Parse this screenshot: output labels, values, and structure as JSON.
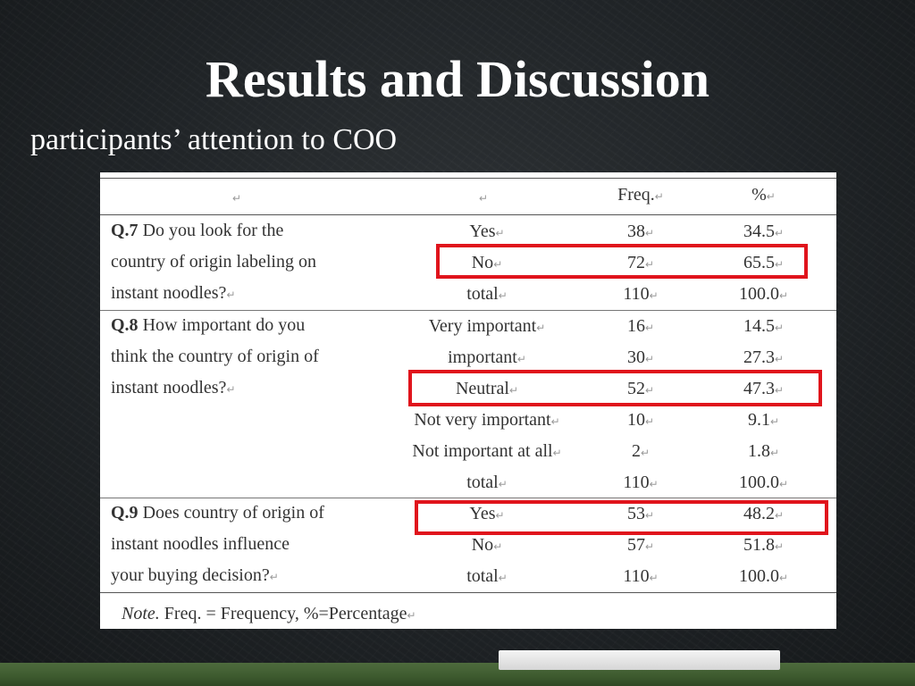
{
  "title": "Results and Discussion",
  "subtitle": "participants’ attention to COO",
  "table": {
    "mark": "↵",
    "headers": {
      "col1": "",
      "col2": "",
      "freq": "Freq.",
      "pct": "%"
    },
    "q7": {
      "num": "Q.7",
      "lines": [
        "Do you look for the",
        "country of origin labeling on",
        "instant noodles?"
      ],
      "rows": [
        {
          "answer": "Yes",
          "freq": "38",
          "pct": "34.5"
        },
        {
          "answer": "No",
          "freq": "72",
          "pct": "65.5"
        },
        {
          "answer": "total",
          "freq": "110",
          "pct": "100.0"
        }
      ]
    },
    "q8": {
      "num": "Q.8",
      "lines": [
        "How important do you",
        "think the country of origin of",
        "instant noodles?"
      ],
      "rows": [
        {
          "answer": "Very important",
          "freq": "16",
          "pct": "14.5"
        },
        {
          "answer": "important",
          "freq": "30",
          "pct": "27.3"
        },
        {
          "answer": "Neutral",
          "freq": "52",
          "pct": "47.3"
        },
        {
          "answer": "Not very important",
          "freq": "10",
          "pct": "9.1"
        },
        {
          "answer": "Not important at all",
          "freq": "2",
          "pct": "1.8"
        },
        {
          "answer": "total",
          "freq": "110",
          "pct": "100.0"
        }
      ]
    },
    "q9": {
      "num": "Q.9",
      "lines": [
        "Does country of origin of",
        "instant noodles influence",
        "your buying decision?"
      ],
      "rows": [
        {
          "answer": "Yes",
          "freq": "53",
          "pct": "48.2"
        },
        {
          "answer": "No",
          "freq": "57",
          "pct": "51.8"
        },
        {
          "answer": "total",
          "freq": "110",
          "pct": "100.0"
        }
      ]
    },
    "note_label": "Note.",
    "note_text": " Freq. = Frequency, %=Percentage",
    "highlight_color": "#e0141c"
  }
}
